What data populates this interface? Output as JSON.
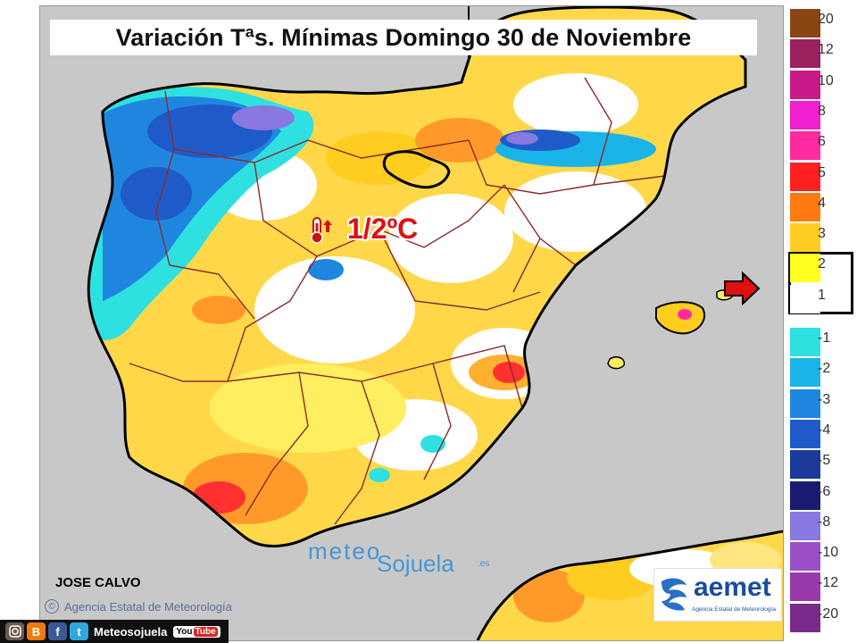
{
  "title": "Variación Tªs. Mínimas Domingo 30 de Noviembre",
  "anomaly_label": "1/2ºC",
  "author": "JOSE CALVO",
  "agency_credit": "Agencia Estatal de Meteorología",
  "copyright_symbol": "©",
  "watermark": {
    "part1": "meteo",
    "part2": "Sojuela",
    "part3": ".es"
  },
  "aemet": {
    "name": "aemet",
    "subtitle": "Agencia Estatal de Meteorología"
  },
  "social": {
    "handle": "Meteosojuela",
    "youtube_you": "You",
    "youtube_tube": "Tube",
    "icons": [
      "instagram-icon",
      "blogger-icon",
      "facebook-icon",
      "twitter-icon"
    ]
  },
  "legend": {
    "highlighted_range": [
      "2",
      "1"
    ],
    "items": [
      {
        "label": "20",
        "color": "#8b4513"
      },
      {
        "label": "12",
        "color": "#9c1f5e"
      },
      {
        "label": "10",
        "color": "#c8198a"
      },
      {
        "label": "8",
        "color": "#f01fcf"
      },
      {
        "label": "6",
        "color": "#ff2aa0"
      },
      {
        "label": "5",
        "color": "#ff2020"
      },
      {
        "label": "4",
        "color": "#ff7a10"
      },
      {
        "label": "3",
        "color": "#ffcc20"
      },
      {
        "label": "2",
        "color": "#ffff20"
      },
      {
        "label": "1",
        "color": "#ffffff"
      },
      {
        "label": "-1",
        "color": "#2fe0e0"
      },
      {
        "label": "-2",
        "color": "#1ab4e8"
      },
      {
        "label": "-3",
        "color": "#1f86e0"
      },
      {
        "label": "-4",
        "color": "#1f5bc8"
      },
      {
        "label": "-5",
        "color": "#1b3a9a"
      },
      {
        "label": "-6",
        "color": "#1a1a70"
      },
      {
        "label": "-8",
        "color": "#8878e0"
      },
      {
        "label": "-10",
        "color": "#9a4fc8"
      },
      {
        "label": "-12",
        "color": "#9a3aaa"
      },
      {
        "label": "-20",
        "color": "#7a2a8a"
      }
    ]
  },
  "colors": {
    "sea": "#c8c8c8",
    "border": "#8b2a2a",
    "coast": "#000000"
  }
}
